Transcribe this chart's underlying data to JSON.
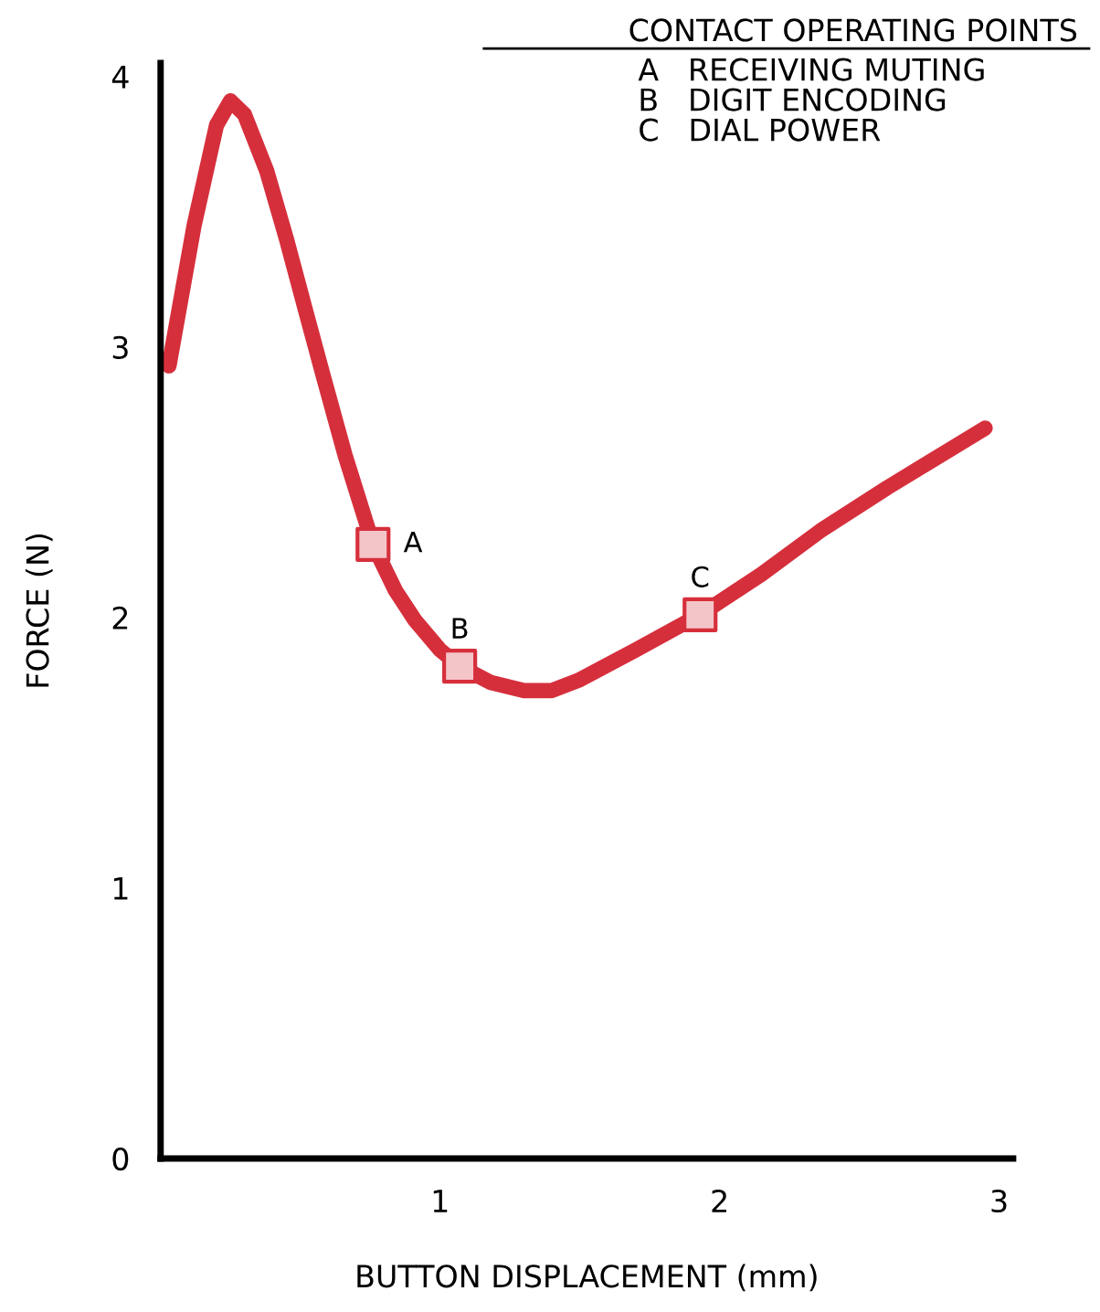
{
  "chart_data": {
    "type": "line",
    "title": "CONTACT OPERATING POINTS",
    "xlabel": "BUTTON DISPLACEMENT (mm)",
    "ylabel": "FORCE (N)",
    "xlim": [
      0,
      3.05
    ],
    "ylim": [
      0,
      4.05
    ],
    "xticks": [
      1,
      2,
      3
    ],
    "yticks": [
      0,
      1,
      2,
      3,
      4
    ],
    "grid": false,
    "series": [
      {
        "color": "#d62f3c",
        "x": [
          0.03,
          0.12,
          0.2,
          0.25,
          0.3,
          0.38,
          0.45,
          0.52,
          0.58,
          0.66,
          0.76,
          0.84,
          0.91,
          1.0,
          1.07,
          1.18,
          1.3,
          1.4,
          1.5,
          1.7,
          1.93,
          2.15,
          2.36,
          2.6,
          2.95
        ],
        "values": [
          2.93,
          3.45,
          3.82,
          3.91,
          3.86,
          3.65,
          3.4,
          3.13,
          2.9,
          2.6,
          2.27,
          2.1,
          1.99,
          1.88,
          1.82,
          1.76,
          1.73,
          1.73,
          1.77,
          1.88,
          2.01,
          2.16,
          2.32,
          2.48,
          2.7
        ]
      },
      {
        "type": "scatter",
        "marker": "square",
        "color": "#d62f3c",
        "x": [
          0.76,
          1.07,
          1.93
        ],
        "values": [
          2.27,
          1.82,
          2.01
        ]
      }
    ],
    "annotations": [
      {
        "text": "A",
        "x": 0.76,
        "y": 2.27
      },
      {
        "text": "B",
        "x": 1.07,
        "y": 1.82
      },
      {
        "text": "C",
        "x": 1.93,
        "y": 2.01
      },
      "A   RECEIVING MUTING",
      "B   DIGIT ENCODING",
      "C   DIAL POWER"
    ]
  }
}
